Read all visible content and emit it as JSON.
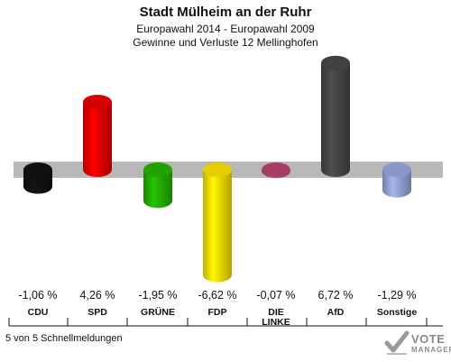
{
  "header": {
    "title": "Stadt Mülheim an der Ruhr",
    "subtitle": "Europawahl 2014 - Europawahl 2009",
    "subtitle2": "Gewinne und Verluste 12 Mellinghofen"
  },
  "chart_data": {
    "type": "bar",
    "categories": [
      "CDU",
      "SPD",
      "GRÜNE",
      "FDP",
      "DIE LINKE",
      "AfD",
      "Sonstige"
    ],
    "category_lines": [
      [
        "CDU"
      ],
      [
        "SPD"
      ],
      [
        "GRÜNE"
      ],
      [
        "FDP"
      ],
      [
        "DIE",
        "LINKE"
      ],
      [
        "AfD"
      ],
      [
        "Sonstige"
      ]
    ],
    "values": [
      -1.06,
      4.26,
      -1.95,
      -6.62,
      -0.07,
      6.72,
      -1.29
    ],
    "value_labels": [
      "-1,06 %",
      "4,26 %",
      "-1,95 %",
      "-6,62 %",
      "-0,07 %",
      "6,72 %",
      "-1,29 %"
    ],
    "colors": [
      "#111111",
      "#e00000",
      "#22aa00",
      "#f2d800",
      "#b0406a",
      "#444444",
      "#8f9fd0"
    ],
    "baseline": 0
  },
  "footer": {
    "note": "5 von 5 Schnellmeldungen"
  },
  "logo": {
    "line1": "VOTE",
    "line2": "MANAGER"
  }
}
